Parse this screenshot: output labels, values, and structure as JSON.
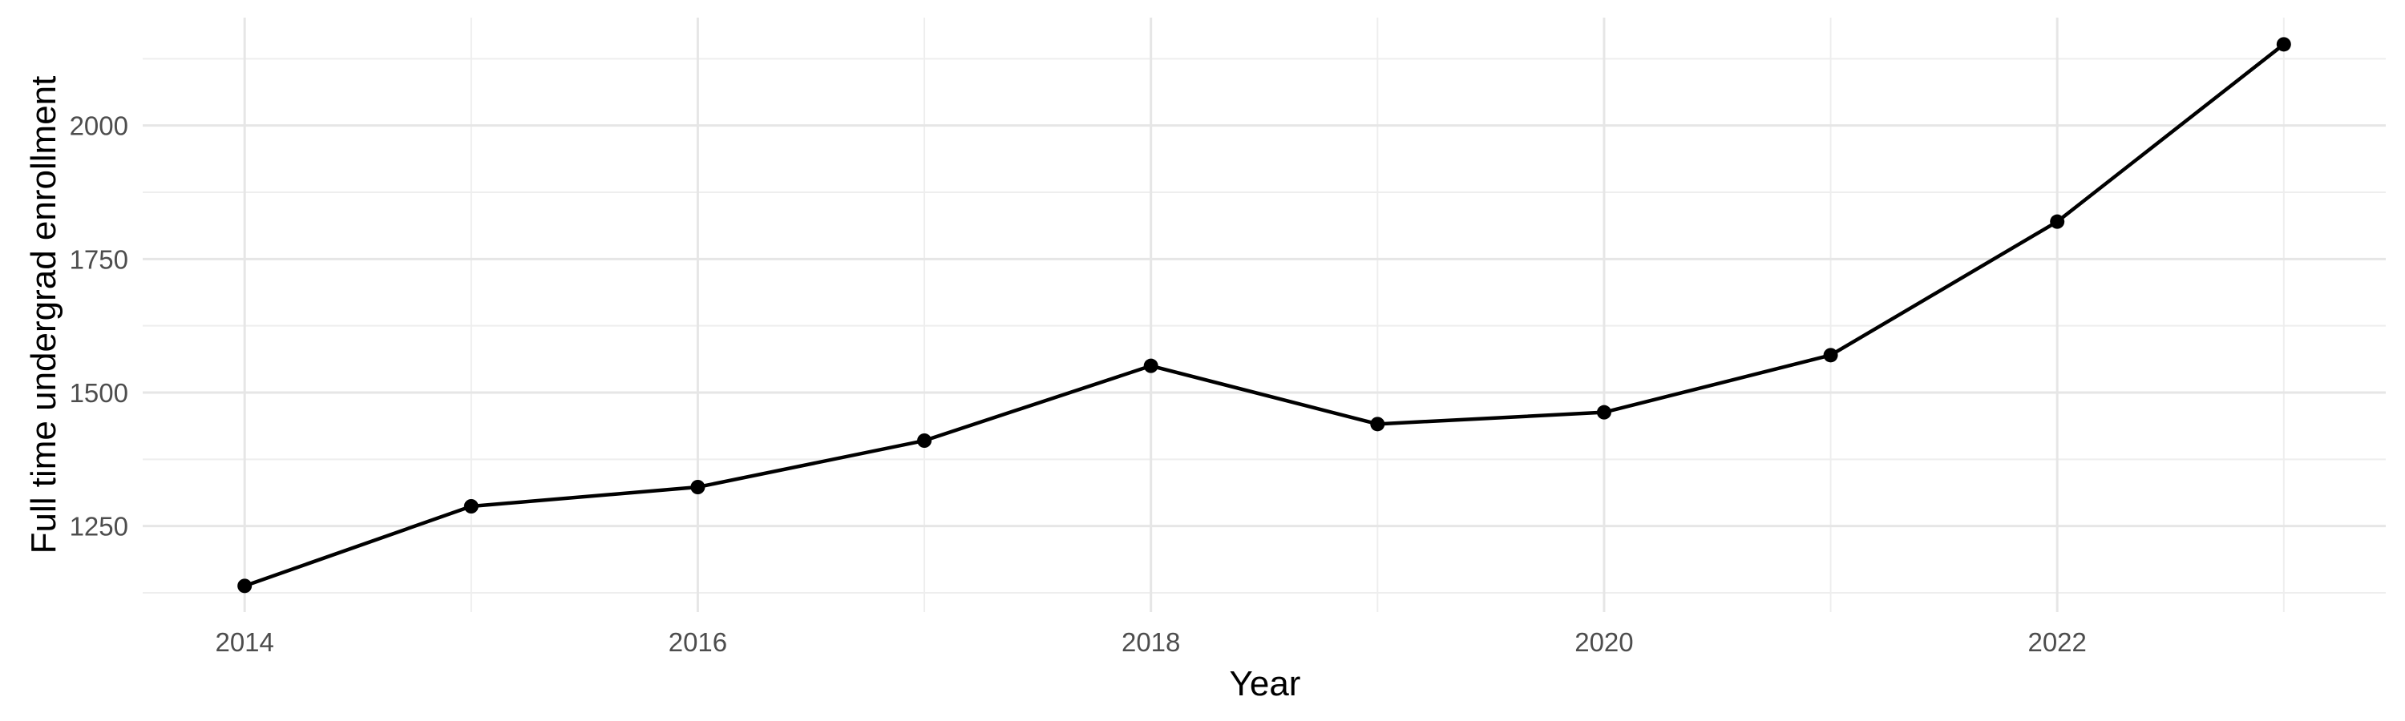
{
  "figure": {
    "x_axis_title": "Year",
    "y_axis_title": "Full time undergrad enrollment"
  },
  "chart_data": {
    "type": "line",
    "title": "",
    "xlabel": "Year",
    "ylabel": "Full time undergrad enrollment",
    "x": [
      2014,
      2015,
      2016,
      2017,
      2018,
      2019,
      2020,
      2021,
      2022,
      2023
    ],
    "y": [
      1138,
      1287,
      1323,
      1410,
      1550,
      1441,
      1463,
      1570,
      1820,
      2152
    ],
    "x_major_breaks": [
      2014,
      2016,
      2018,
      2020,
      2022
    ],
    "x_tick_labels": [
      "2014",
      "2016",
      "2018",
      "2020",
      "2022"
    ],
    "x_minor_breaks": [
      2015,
      2017,
      2019,
      2021,
      2023
    ],
    "y_major_breaks": [
      1250,
      1500,
      1750,
      2000
    ],
    "y_tick_labels": [
      "1250",
      "1500",
      "1750",
      "2000"
    ],
    "y_minor_breaks": [
      1125,
      1375,
      1625,
      1875,
      2125
    ],
    "xlim": [
      2013.55,
      2023.45
    ],
    "ylim": [
      1089,
      2202
    ],
    "grid": true,
    "legend_position": "none",
    "colors": {
      "line": "#000000",
      "point": "#000000",
      "grid_major": "#e6e6e6",
      "grid_minor": "#eeeeee",
      "tick_label": "#4d4d4d",
      "axis_title": "#000000",
      "background": "#ffffff"
    }
  }
}
